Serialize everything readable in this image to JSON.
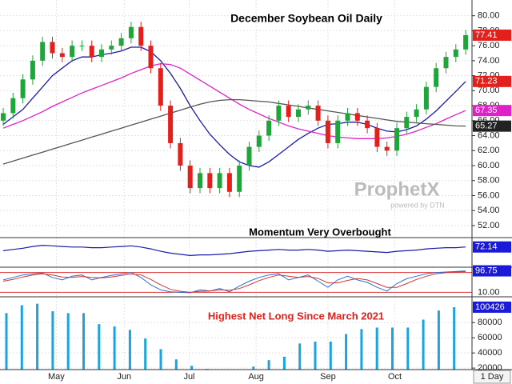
{
  "chart_data": [
    {
      "type": "candlestick",
      "title": "December Soybean Oil Daily",
      "watermark": "ProphetX",
      "watermark_sub": "powered by DTN",
      "up_color": "#1fa63a",
      "down_color": "#e3201b",
      "badge_color": "#e3201b",
      "open": [
        66,
        67,
        69,
        71.5,
        74,
        76.5,
        75,
        74.5,
        76,
        76,
        74.5,
        75.5,
        76,
        77,
        78.5,
        76,
        73,
        68,
        63,
        60,
        57,
        59,
        57,
        59,
        56.5,
        60,
        62.5,
        64,
        66,
        68,
        66.5,
        67.5,
        68,
        66,
        63,
        66,
        67,
        66,
        65,
        62.5,
        62,
        65,
        66.5,
        67.5,
        70.5,
        73,
        74.5,
        75.5
      ],
      "high": [
        67.7,
        69.7,
        72.2,
        74.7,
        77.2,
        77.2,
        75.7,
        76.7,
        76.7,
        76.7,
        76.2,
        76.7,
        77.7,
        79.2,
        79.2,
        76.7,
        73.7,
        68.7,
        63.7,
        60.7,
        59.7,
        59.7,
        59.7,
        59.7,
        60.7,
        63.2,
        64.7,
        66.7,
        68.7,
        68.7,
        68.2,
        68.7,
        68.7,
        66.7,
        66.7,
        67.7,
        67.7,
        66.7,
        65.7,
        63.2,
        65.7,
        67.2,
        68.2,
        71.2,
        73.7,
        75.2,
        76.2,
        78.1
      ],
      "low": [
        65.3,
        66.3,
        68.3,
        70.8,
        73.3,
        74.3,
        73.8,
        73.8,
        75.3,
        73.8,
        73.8,
        74.8,
        75.3,
        76.3,
        75.3,
        72.3,
        67.3,
        62.3,
        59.3,
        56.3,
        56.3,
        56.3,
        56.3,
        55.8,
        55.8,
        59.3,
        61.8,
        63.3,
        65.3,
        65.8,
        65.8,
        66.8,
        65.3,
        62.3,
        62.3,
        65.3,
        65.3,
        64.3,
        61.8,
        61.3,
        61.3,
        64.3,
        65.8,
        66.8,
        69.8,
        72.3,
        73.8,
        74.8
      ],
      "close": [
        67,
        69,
        71.5,
        74,
        76.5,
        75,
        74.5,
        76,
        76,
        74.5,
        75.5,
        76,
        77,
        78.5,
        76,
        73,
        68,
        63,
        60,
        57,
        59,
        57,
        59,
        56.5,
        60,
        62.5,
        64,
        66,
        68,
        66.5,
        67.5,
        68,
        66,
        63,
        66,
        67,
        66,
        65,
        62.5,
        62,
        65,
        66.5,
        67.5,
        70.5,
        73,
        74.5,
        75.5,
        77.41
      ],
      "lines": [
        {
          "color": "#1a1aa8",
          "badge_color": "#e3201b",
          "values": [
            65.5,
            66.5,
            67.5,
            69,
            70.5,
            72,
            73,
            74,
            74.5,
            74.5,
            74.8,
            75,
            75.3,
            75.8,
            75.8,
            75.2,
            74,
            72.3,
            70.3,
            68,
            66,
            64.2,
            62.8,
            61.5,
            60.5,
            60,
            59.8,
            60.5,
            61.5,
            62.5,
            63.5,
            64.3,
            65,
            65.5,
            65.6,
            65.8,
            65.8,
            65.5,
            65,
            64.6,
            64.5,
            64.8,
            65.3,
            66.2,
            67.3,
            68.6,
            69.9,
            71.23
          ]
        },
        {
          "color": "#e020c8",
          "badge_color": "#e020c8",
          "values": [
            65,
            65.5,
            66,
            66.6,
            67.2,
            67.9,
            68.5,
            69.1,
            69.7,
            70.2,
            70.7,
            71.2,
            71.7,
            72.3,
            72.8,
            73.3,
            73.6,
            73.5,
            73,
            72.2,
            71.4,
            70.6,
            69.8,
            69,
            68.2,
            67.5,
            66.9,
            66.3,
            65.8,
            65.3,
            64.9,
            64.6,
            64.3,
            64,
            63.8,
            63.7,
            63.6,
            63.6,
            63.6,
            63.7,
            63.9,
            64.2,
            64.6,
            65.1,
            65.6,
            66.2,
            66.8,
            67.35
          ]
        },
        {
          "color": "#555555",
          "badge_color": "#222222",
          "values": [
            60.2,
            60.6,
            61,
            61.4,
            61.8,
            62.2,
            62.6,
            63,
            63.4,
            63.8,
            64.2,
            64.6,
            65,
            65.4,
            65.8,
            66.2,
            66.6,
            67,
            67.4,
            67.8,
            68.2,
            68.5,
            68.7,
            68.8,
            68.8,
            68.7,
            68.6,
            68.5,
            68.3,
            68.1,
            67.9,
            67.7,
            67.5,
            67.3,
            67.1,
            66.9,
            66.7,
            66.5,
            66.3,
            66.1,
            65.9,
            65.8,
            65.7,
            65.6,
            65.5,
            65.4,
            65.3,
            65.27
          ]
        }
      ],
      "ylim": [
        50.5,
        82.1
      ],
      "yticks": [
        {
          "value": 52,
          "label": "52.00"
        },
        {
          "value": 54,
          "label": "54.00"
        },
        {
          "value": 56,
          "label": "56.00"
        },
        {
          "value": 58,
          "label": "58.00"
        },
        {
          "value": 60,
          "label": "60.00"
        },
        {
          "value": 62,
          "label": "62.00"
        },
        {
          "value": 64,
          "label": "64.00"
        },
        {
          "value": 66,
          "label": "66.00"
        },
        {
          "value": 68,
          "label": "68.00"
        },
        {
          "value": 70,
          "label": "70.00"
        },
        {
          "value": 72,
          "label": "72.00"
        },
        {
          "value": 74,
          "label": "74.00"
        },
        {
          "value": 76,
          "label": "76.00"
        },
        {
          "value": 78,
          "label": "78.00"
        },
        {
          "value": 80,
          "label": "80.00"
        }
      ],
      "xticks": [
        {
          "value": 5.4,
          "label": "May"
        },
        {
          "value": 12.3,
          "label": "Jun"
        },
        {
          "value": 18.9,
          "label": "Jul"
        },
        {
          "value": 25.7,
          "label": "Aug"
        },
        {
          "value": 33,
          "label": "Sep"
        },
        {
          "value": 39.8,
          "label": "Oct"
        }
      ],
      "interval": "1 Day",
      "grid": true
    },
    {
      "type": "line",
      "title": "Momentum Very Overbought",
      "color": "#1a1aa8",
      "badge_color": "#1a1ad8",
      "values": [
        66,
        68,
        70,
        73,
        75,
        74,
        73,
        72,
        72,
        71,
        71,
        72,
        73,
        74,
        72,
        69,
        65,
        62,
        60,
        58,
        59,
        59,
        60,
        61,
        63,
        65,
        66,
        67,
        68,
        67,
        67,
        68,
        67,
        65,
        66,
        67,
        66,
        65,
        64,
        63,
        65,
        66,
        67,
        69,
        70,
        71,
        71,
        72.14
      ],
      "ylim": [
        40,
        85
      ]
    },
    {
      "type": "stochastic",
      "badge_color": "#1a1ad8",
      "ref_color": "#d33",
      "series": [
        {
          "color": "#2a6fd6",
          "values": [
            60,
            70,
            80,
            85,
            88,
            70,
            60,
            75,
            80,
            60,
            70,
            78,
            85,
            90,
            70,
            40,
            20,
            12,
            10,
            8,
            20,
            15,
            25,
            12,
            35,
            55,
            70,
            80,
            85,
            60,
            70,
            80,
            55,
            30,
            60,
            75,
            60,
            50,
            30,
            15,
            45,
            65,
            75,
            85,
            90,
            92,
            94,
            96.75
          ]
        },
        {
          "color": "#d33333",
          "values": [
            55,
            62,
            72,
            80,
            85,
            80,
            72,
            70,
            74,
            70,
            68,
            72,
            78,
            84,
            80,
            62,
            40,
            22,
            14,
            10,
            14,
            15,
            20,
            18,
            25,
            40,
            57,
            70,
            80,
            75,
            70,
            74,
            66,
            48,
            48,
            58,
            66,
            60,
            45,
            30,
            30,
            45,
            62,
            75,
            85,
            89,
            92,
            94
          ]
        }
      ],
      "ylim": [
        -5,
        105
      ],
      "yticks": [
        {
          "value": 10,
          "label": "10.00"
        },
        {
          "value": 90,
          "label": "90.00"
        }
      ]
    },
    {
      "type": "bar",
      "title": "Highest Net Long Since March 2021",
      "color": "#1ba3e0",
      "badge_color": "#1a1ad8",
      "values": [
        92600,
        103000,
        105000,
        95000,
        92600,
        92600,
        78000,
        75000,
        70500,
        59000,
        45000,
        31500,
        23000,
        19000,
        18500,
        18500,
        22000,
        30500,
        35000,
        52500,
        55000,
        55000,
        65000,
        71500,
        73500,
        73500,
        73500,
        84000,
        96000,
        100426
      ],
      "ylim": [
        18000,
        112000
      ],
      "yticks": [
        20000,
        40000,
        60000,
        80000
      ]
    }
  ]
}
